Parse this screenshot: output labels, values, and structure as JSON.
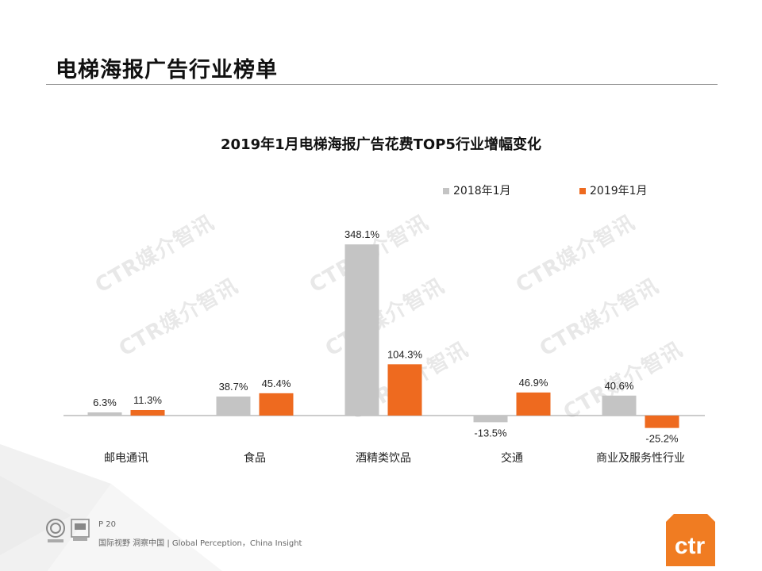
{
  "page": {
    "title": "电梯海报广告行业榜单",
    "page_number": "P 20",
    "footer": "国际视野 洞察中国 | Global Perception，China Insight",
    "brand": "ctr",
    "watermark": "CTR媒介智讯"
  },
  "colors": {
    "series_2018": "#c4c4c4",
    "series_2019": "#ee6a1f",
    "brand": "#f07c22"
  },
  "chart_data": {
    "type": "bar",
    "title": "2019年1月电梯海报广告花费TOP5行业增幅变化",
    "categories": [
      "邮电通讯",
      "食品",
      "酒精类饮品",
      "交通",
      "商业及服务性行业"
    ],
    "series": [
      {
        "name": "2018年1月",
        "values": [
          6.3,
          38.7,
          348.1,
          -13.5,
          40.6
        ]
      },
      {
        "name": "2019年1月",
        "values": [
          11.3,
          45.4,
          104.3,
          46.9,
          -25.2
        ]
      }
    ],
    "value_labels": [
      [
        "6.3%",
        "38.7%",
        "348.1%",
        "-13.5%",
        "40.6%"
      ],
      [
        "11.3%",
        "45.4%",
        "104.3%",
        "46.9%",
        "-25.2%"
      ]
    ],
    "unit": "%",
    "legend_position": "top-right",
    "grid": false
  }
}
